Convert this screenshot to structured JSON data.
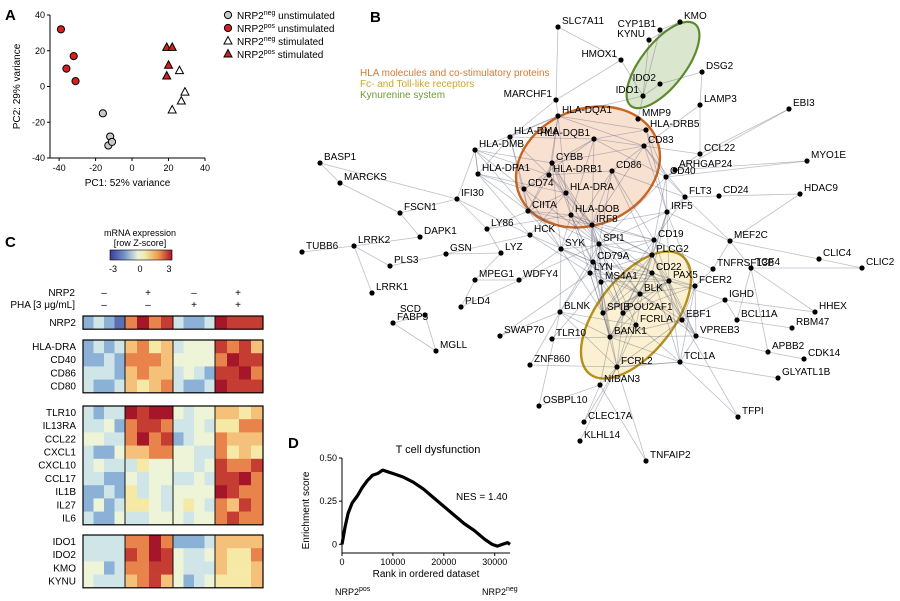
{
  "panels": {
    "A": "A",
    "B": "B",
    "C": "C",
    "D": "D"
  },
  "pca": {
    "chart_data": {
      "type": "scatter",
      "xlabel": "PC1: 52% variance",
      "ylabel": "PC2: 29% variance",
      "xlim": [
        -45,
        40
      ],
      "ylim": [
        -40,
        40
      ],
      "xticks": [
        "-40",
        "-20",
        "0",
        "20",
        "40"
      ],
      "yticks": [
        "40",
        "20",
        "0",
        "-20",
        "-40"
      ],
      "series": [
        {
          "name": "NRP2neg unstimulated",
          "label_main": "NRP2",
          "label_sup": "neg",
          "label_rest": " unstimulated",
          "shape": "circle",
          "color": "#c9c9c9",
          "points": [
            [
              -16,
              -15
            ],
            [
              -12,
              -28
            ],
            [
              -13,
              -33
            ],
            [
              -11,
              -31
            ]
          ]
        },
        {
          "name": "NRP2pos unstimulated",
          "label_main": "NRP2",
          "label_sup": "pos",
          "label_rest": " unstimulated",
          "shape": "circle",
          "color": "#d62020",
          "points": [
            [
              -39,
              32
            ],
            [
              -32,
              17
            ],
            [
              -36,
              10
            ],
            [
              -31,
              3
            ]
          ]
        },
        {
          "name": "NRP2neg stimulated",
          "label_main": "NRP2",
          "label_sup": "neg",
          "label_rest": " stimulated",
          "shape": "triangle",
          "color": "#ffffff",
          "points": [
            [
              26,
              9
            ],
            [
              29,
              -3
            ],
            [
              27,
              -8
            ],
            [
              22,
              -13
            ]
          ]
        },
        {
          "name": "NRP2pos stimulated",
          "label_main": "NRP2",
          "label_sup": "pos",
          "label_rest": " stimulated",
          "shape": "triangle",
          "color": "#d62020",
          "points": [
            [
              19,
              22
            ],
            [
              22,
              22
            ],
            [
              20,
              12
            ],
            [
              19,
              6
            ]
          ]
        }
      ]
    }
  },
  "network": {
    "legend": [
      {
        "text": "HLA molecules and co-stimulatory proteins",
        "color": "#d97a2e"
      },
      {
        "text": "Fc- and Toll-like receptors",
        "color": "#d0a524"
      },
      {
        "text": "Kynurenine system",
        "color": "#6f9a3a"
      }
    ],
    "nodes": [
      {
        "id": "SLC7A11",
        "label": "SLC7A11"
      },
      {
        "id": "CYP1B1",
        "label": "CYP1B1"
      },
      {
        "id": "KMO",
        "label": "KMO"
      },
      {
        "id": "KYNU",
        "label": "KYNU"
      },
      {
        "id": "HMOX1",
        "label": "HMOX1"
      },
      {
        "id": "IDO2",
        "label": "IDO2"
      },
      {
        "id": "IDO1",
        "label": "IDO1"
      },
      {
        "id": "DSG2",
        "label": "DSG2"
      },
      {
        "id": "MARCHF1",
        "label": "MARCHF1"
      },
      {
        "id": "LAMP3",
        "label": "LAMP3"
      },
      {
        "id": "EBI3",
        "label": "EBI3"
      },
      {
        "id": "HLA-DQA1",
        "label": "HLA-DQA1"
      },
      {
        "id": "MMP9",
        "label": "MMP9"
      },
      {
        "id": "HLA-DMA",
        "label": "HLA-DMA"
      },
      {
        "id": "HLA-DQB1",
        "label": "HLA-DQB1"
      },
      {
        "id": "HLA-DRB5",
        "label": "HLA-DRB5"
      },
      {
        "id": "HLA-DMB",
        "label": "HLA-DMB"
      },
      {
        "id": "CD83",
        "label": "CD83"
      },
      {
        "id": "CCL22",
        "label": "CCL22"
      },
      {
        "id": "MYO1E",
        "label": "MYO1E"
      },
      {
        "id": "CYBB",
        "label": "CYBB"
      },
      {
        "id": "ARHGAP24",
        "label": "ARHGAP24"
      },
      {
        "id": "HLA-DPA1",
        "label": "HLA-DPA1"
      },
      {
        "id": "HLA-DRB1",
        "label": "HLA-DRB1"
      },
      {
        "id": "CD86",
        "label": "CD86"
      },
      {
        "id": "CD40",
        "label": "CD40"
      },
      {
        "id": "BASP1",
        "label": "BASP1"
      },
      {
        "id": "IFI30",
        "label": "IFI30"
      },
      {
        "id": "CD74",
        "label": "CD74"
      },
      {
        "id": "HLA-DRA",
        "label": "HLA-DRA"
      },
      {
        "id": "CD24",
        "label": "CD24"
      },
      {
        "id": "HDAC9",
        "label": "HDAC9"
      },
      {
        "id": "MARCKS",
        "label": "MARCKS"
      },
      {
        "id": "CIITA",
        "label": "CIITA"
      },
      {
        "id": "FLT3",
        "label": "FLT3"
      },
      {
        "id": "FSCN1",
        "label": "FSCN1"
      },
      {
        "id": "HLA-DOB",
        "label": "HLA-DOB"
      },
      {
        "id": "IRF5",
        "label": "IRF5"
      },
      {
        "id": "MEF2C",
        "label": "MEF2C"
      },
      {
        "id": "LY86",
        "label": "LY86"
      },
      {
        "id": "IRF8",
        "label": "IRF8"
      },
      {
        "id": "DAPK1",
        "label": "DAPK1"
      },
      {
        "id": "HCK",
        "label": "HCK"
      },
      {
        "id": "SPI1",
        "label": "SPI1"
      },
      {
        "id": "CD19",
        "label": "CD19"
      },
      {
        "id": "TNFRSF13B",
        "label": "TNFRSF13B"
      },
      {
        "id": "LRRK2",
        "label": "LRRK2"
      },
      {
        "id": "TUBB6",
        "label": "TUBB6"
      },
      {
        "id": "GSN",
        "label": "GSN"
      },
      {
        "id": "SYK",
        "label": "SYK"
      },
      {
        "id": "PLCG2",
        "label": "PLCG2"
      },
      {
        "id": "CLIC4",
        "label": "CLIC4"
      },
      {
        "id": "PLS3",
        "label": "PLS3"
      },
      {
        "id": "LYZ",
        "label": "LYZ"
      },
      {
        "id": "CD79A",
        "label": "CD79A"
      },
      {
        "id": "CD22",
        "label": "CD22"
      },
      {
        "id": "FCER2",
        "label": "FCER2"
      },
      {
        "id": "TCF4",
        "label": "TCF4"
      },
      {
        "id": "CLIC2",
        "label": "CLIC2"
      },
      {
        "id": "LYN",
        "label": "LYN"
      },
      {
        "id": "PAX5",
        "label": "PAX5"
      },
      {
        "id": "LRRK1",
        "label": "LRRK1"
      },
      {
        "id": "MPEG1",
        "label": "MPEG1"
      },
      {
        "id": "WDFY4",
        "label": "WDFY4"
      },
      {
        "id": "MS4A1",
        "label": "MS4A1"
      },
      {
        "id": "BLK",
        "label": "BLK"
      },
      {
        "id": "IGHD",
        "label": "IGHD"
      },
      {
        "id": "HHEX",
        "label": "HHEX"
      },
      {
        "id": "PLD4",
        "label": "PLD4"
      },
      {
        "id": "SPIB",
        "label": "SPIB"
      },
      {
        "id": "POU2AF1",
        "label": "POU2AF1"
      },
      {
        "id": "EBF1",
        "label": "EBF1"
      },
      {
        "id": "BCL11A",
        "label": "BCL11A"
      },
      {
        "id": "SCD",
        "label": "SCD"
      },
      {
        "id": "BLNK",
        "label": "BLNK"
      },
      {
        "id": "RBM47",
        "label": "RBM47"
      },
      {
        "id": "SWAP70",
        "label": "SWAP70"
      },
      {
        "id": "FCRLA",
        "label": "FCRLA"
      },
      {
        "id": "FABP5",
        "label": "FABP5"
      },
      {
        "id": "MGLL",
        "label": "MGLL"
      },
      {
        "id": "TLR10",
        "label": "TLR10"
      },
      {
        "id": "BANK1",
        "label": "BANK1"
      },
      {
        "id": "VPREB3",
        "label": "VPREB3"
      },
      {
        "id": "APBB2",
        "label": "APBB2"
      },
      {
        "id": "CDK14",
        "label": "CDK14"
      },
      {
        "id": "ZNF860",
        "label": "ZNF860"
      },
      {
        "id": "FCRL2",
        "label": "FCRL2"
      },
      {
        "id": "TCL1A",
        "label": "TCL1A"
      },
      {
        "id": "GLYATL1B",
        "label": "GLYATL1B"
      },
      {
        "id": "NIBAN3",
        "label": "NIBAN3"
      },
      {
        "id": "OSBPL10",
        "label": "OSBPL10"
      },
      {
        "id": "TFPI",
        "label": "TFPI"
      },
      {
        "id": "CLEC17A",
        "label": "CLEC17A"
      },
      {
        "id": "KLHL14",
        "label": "KLHL14"
      },
      {
        "id": "TNFAIP2",
        "label": "TNFAIP2"
      }
    ]
  },
  "heatmap": {
    "legend_title_1": "mRNA expression",
    "legend_title_2": "[row Z-score]",
    "scale_ticks": [
      "-3",
      "0",
      "3"
    ],
    "row_nrp2_label": "NRP2",
    "row_pha_label": "PHA [3 μg/mL]",
    "nrp2_marks": [
      "–",
      "+",
      "–",
      "+"
    ],
    "pha_marks": [
      "–",
      "–",
      "+",
      "+"
    ],
    "blocks": [
      {
        "genes": [
          "NRP2"
        ]
      },
      {
        "genes": [
          "HLA-DRA",
          "CD40",
          "CD86",
          "CD80"
        ]
      },
      {
        "genes": [
          "TLR10",
          "IL13RA",
          "CCL22",
          "CXCL1",
          "CXCL10",
          "CCL17",
          "IL1B",
          "IL27",
          "IL6"
        ]
      },
      {
        "genes": [
          "IDO1",
          "IDO2",
          "KMO",
          "KYNU"
        ]
      }
    ]
  },
  "gsea": {
    "chart_data": {
      "type": "line",
      "title": "T cell dysfunction",
      "xlabel": "Rank in ordered dataset",
      "ylabel": "Enrichment score",
      "xlim": [
        0,
        33000
      ],
      "ylim": [
        -0.05,
        0.5
      ],
      "xticks": [
        "0",
        "10000",
        "20000",
        "30000"
      ],
      "yticks": [
        "0.50",
        "0.25",
        "0"
      ],
      "annotation": "NES = 1.40",
      "bottom_left_main": "NRP2",
      "bottom_left_sup": "pos",
      "bottom_right_main": "NRP2",
      "bottom_right_sup": "neg",
      "x": [
        0,
        600,
        1200,
        2000,
        3000,
        4000,
        5000,
        6000,
        7000,
        8000,
        9000,
        10000,
        12000,
        14000,
        16000,
        18000,
        20000,
        22000,
        24000,
        26000,
        28000,
        29500,
        30500,
        31500,
        32500,
        33000
      ],
      "y": [
        0,
        0.1,
        0.18,
        0.24,
        0.28,
        0.33,
        0.37,
        0.4,
        0.41,
        0.43,
        0.42,
        0.41,
        0.39,
        0.36,
        0.32,
        0.27,
        0.22,
        0.17,
        0.12,
        0.08,
        0.03,
        0.0,
        -0.01,
        0.0,
        0.01,
        0.0
      ]
    }
  }
}
